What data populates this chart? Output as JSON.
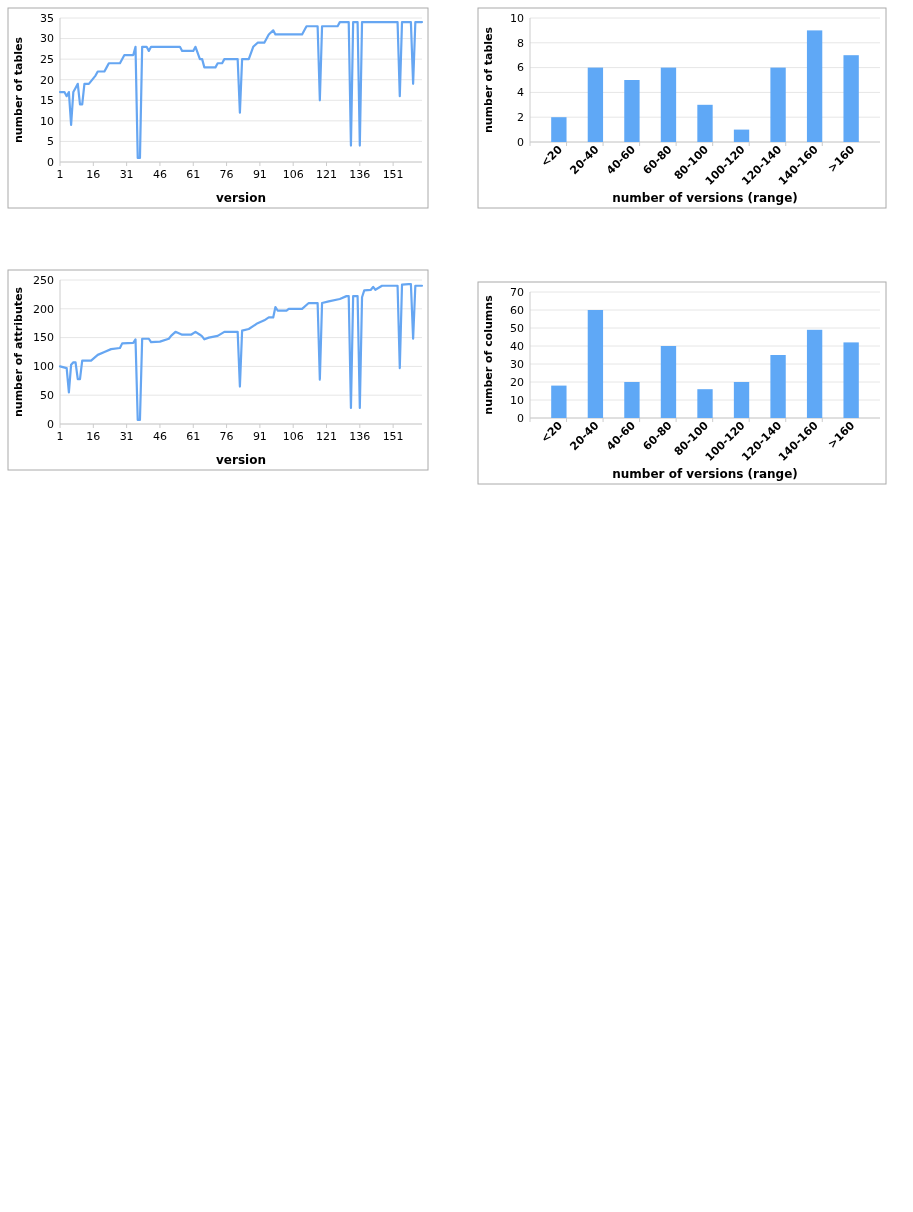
{
  "chart_data": [
    {
      "type": "line",
      "xlabel": "version",
      "ylabel": "number of tables",
      "xlim": [
        1,
        164
      ],
      "xticks": [
        1,
        16,
        31,
        46,
        61,
        76,
        91,
        106,
        121,
        136,
        151
      ],
      "ylim": [
        0,
        35
      ],
      "yticks": [
        0,
        5,
        10,
        15,
        20,
        25,
        30,
        35
      ],
      "grid": "y",
      "series": [
        {
          "color": "#66a6f2",
          "x": [
            1,
            3,
            4,
            5,
            6,
            7,
            8,
            9,
            10,
            11,
            12,
            14,
            17,
            18,
            21,
            22,
            23,
            28,
            30,
            34,
            35,
            36,
            37,
            38,
            40,
            41,
            42,
            55,
            56,
            61,
            62,
            64,
            65,
            66,
            71,
            72,
            74,
            75,
            81,
            82,
            83,
            86,
            88,
            90,
            93,
            95,
            97,
            98,
            110,
            112,
            117,
            118,
            119,
            126,
            127,
            131,
            132,
            133,
            135,
            136,
            137,
            153,
            154,
            155,
            159,
            160,
            161,
            164
          ],
          "values": [
            17,
            17,
            16,
            17,
            9,
            17,
            18,
            19,
            14,
            14,
            19,
            19,
            21,
            22,
            22,
            23,
            24,
            24,
            26,
            26,
            28,
            1,
            1,
            28,
            28,
            27,
            28,
            28,
            27,
            27,
            28,
            25,
            25,
            23,
            23,
            24,
            24,
            25,
            25,
            12,
            25,
            25,
            28,
            29,
            29,
            31,
            32,
            31,
            31,
            33,
            33,
            15,
            33,
            33,
            34,
            34,
            4,
            34,
            34,
            4,
            34,
            34,
            16,
            34,
            34,
            19,
            34,
            34
          ]
        }
      ]
    },
    {
      "type": "bar",
      "xlabel": "number of versions (range)",
      "ylabel": "number of tables",
      "categories": [
        "<20",
        "20-40",
        "40-60",
        "60-80",
        "80-100",
        "100-120",
        "120-140",
        "140-160",
        ">160"
      ],
      "ylim": [
        0,
        10
      ],
      "yticks": [
        0,
        2,
        4,
        6,
        8,
        10
      ],
      "grid": "y",
      "series": [
        {
          "color": "#5fa8f6",
          "values": [
            2,
            6,
            5,
            6,
            3,
            1,
            6,
            9,
            7
          ]
        }
      ]
    },
    {
      "type": "line",
      "xlabel": "version",
      "ylabel": "number of attributes",
      "xlim": [
        1,
        164
      ],
      "xticks": [
        1,
        16,
        31,
        46,
        61,
        76,
        91,
        106,
        121,
        136,
        151
      ],
      "ylim": [
        0,
        250
      ],
      "yticks": [
        0,
        50,
        100,
        150,
        200,
        250
      ],
      "grid": "y",
      "series": [
        {
          "color": "#66a6f2",
          "x": [
            1,
            4,
            5,
            6,
            7,
            8,
            9,
            10,
            11,
            15,
            18,
            21,
            24,
            28,
            29,
            34,
            35,
            36,
            37,
            38,
            41,
            42,
            46,
            50,
            51,
            53,
            56,
            60,
            62,
            64,
            65,
            66,
            68,
            72,
            75,
            81,
            82,
            83,
            86,
            90,
            93,
            95,
            97,
            98,
            99,
            103,
            104,
            110,
            113,
            117,
            118,
            119,
            122,
            127,
            130,
            131,
            132,
            133,
            135,
            136,
            137,
            138,
            141,
            142,
            143,
            146,
            153,
            154,
            155,
            158,
            159,
            160,
            161,
            164
          ],
          "values": [
            100,
            97,
            55,
            103,
            107,
            107,
            78,
            78,
            110,
            110,
            120,
            125,
            130,
            132,
            140,
            141,
            147,
            7,
            7,
            148,
            148,
            142,
            143,
            148,
            153,
            160,
            155,
            155,
            160,
            155,
            152,
            147,
            150,
            153,
            160,
            160,
            65,
            162,
            165,
            175,
            180,
            185,
            185,
            203,
            197,
            197,
            200,
            200,
            210,
            210,
            77,
            210,
            213,
            217,
            222,
            222,
            28,
            222,
            222,
            28,
            220,
            232,
            233,
            238,
            233,
            240,
            240,
            97,
            242,
            243,
            243,
            148,
            240,
            240
          ]
        }
      ]
    },
    {
      "type": "bar",
      "xlabel": "number of versions (range)",
      "ylabel": "number of columns",
      "categories": [
        "<20",
        "20-40",
        "40-60",
        "60-80",
        "80-100",
        "100-120",
        "120-140",
        "140-160",
        ">160"
      ],
      "ylim": [
        0,
        70
      ],
      "yticks": [
        0,
        10,
        20,
        30,
        40,
        50,
        60,
        70
      ],
      "grid": "y",
      "series": [
        {
          "color": "#5fa8f6",
          "values": [
            18,
            60,
            20,
            40,
            16,
            20,
            35,
            49,
            42
          ]
        }
      ]
    }
  ]
}
